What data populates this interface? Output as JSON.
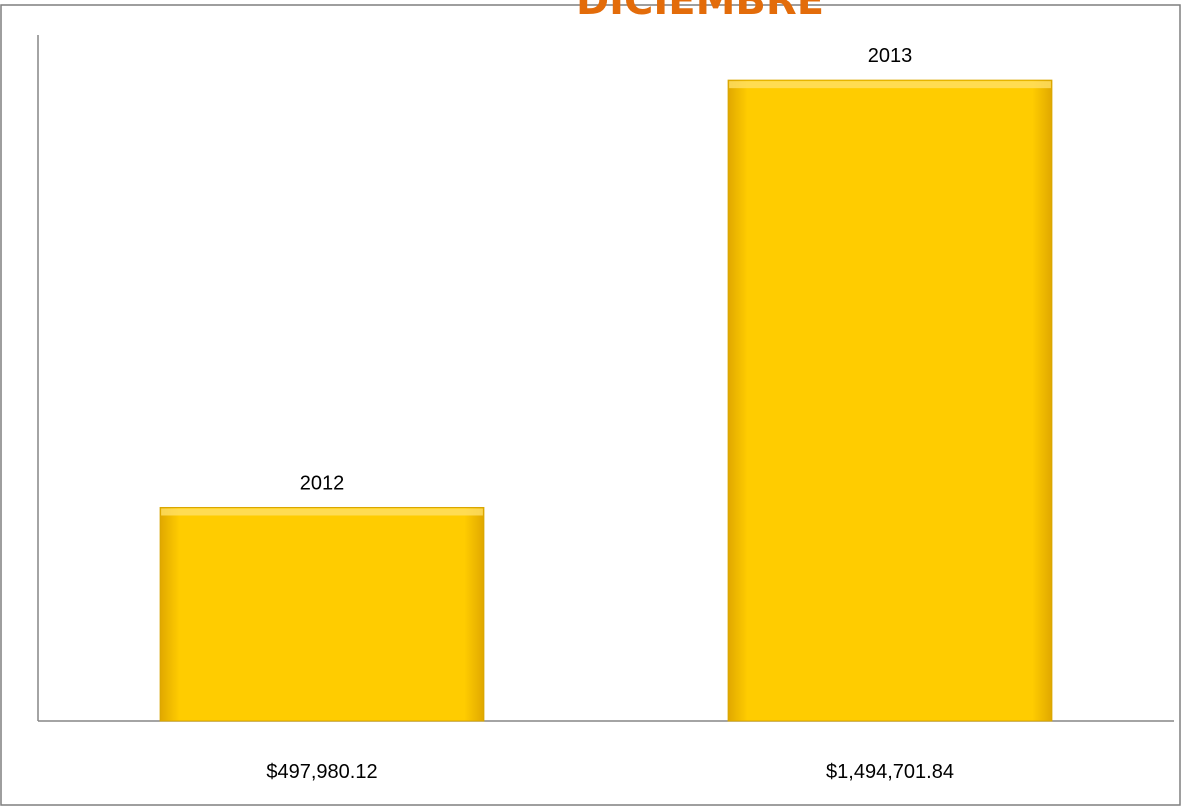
{
  "chart_data": {
    "type": "bar",
    "title": "DICIEMBRE",
    "categories": [
      "$497,980.12",
      "$1,494,701.84"
    ],
    "bar_labels": [
      "2012",
      "2013"
    ],
    "values": [
      497980.12,
      1494701.84
    ],
    "ylim": [
      0,
      1600000
    ],
    "grid": false,
    "legend": "none",
    "xlabel": "",
    "ylabel": ""
  },
  "colors": {
    "bar_fill": "#FFCC00",
    "bar_edge": "#D9A600",
    "title": "#E36C0A",
    "axis": "#868686",
    "frame": "#7F7F7F"
  }
}
